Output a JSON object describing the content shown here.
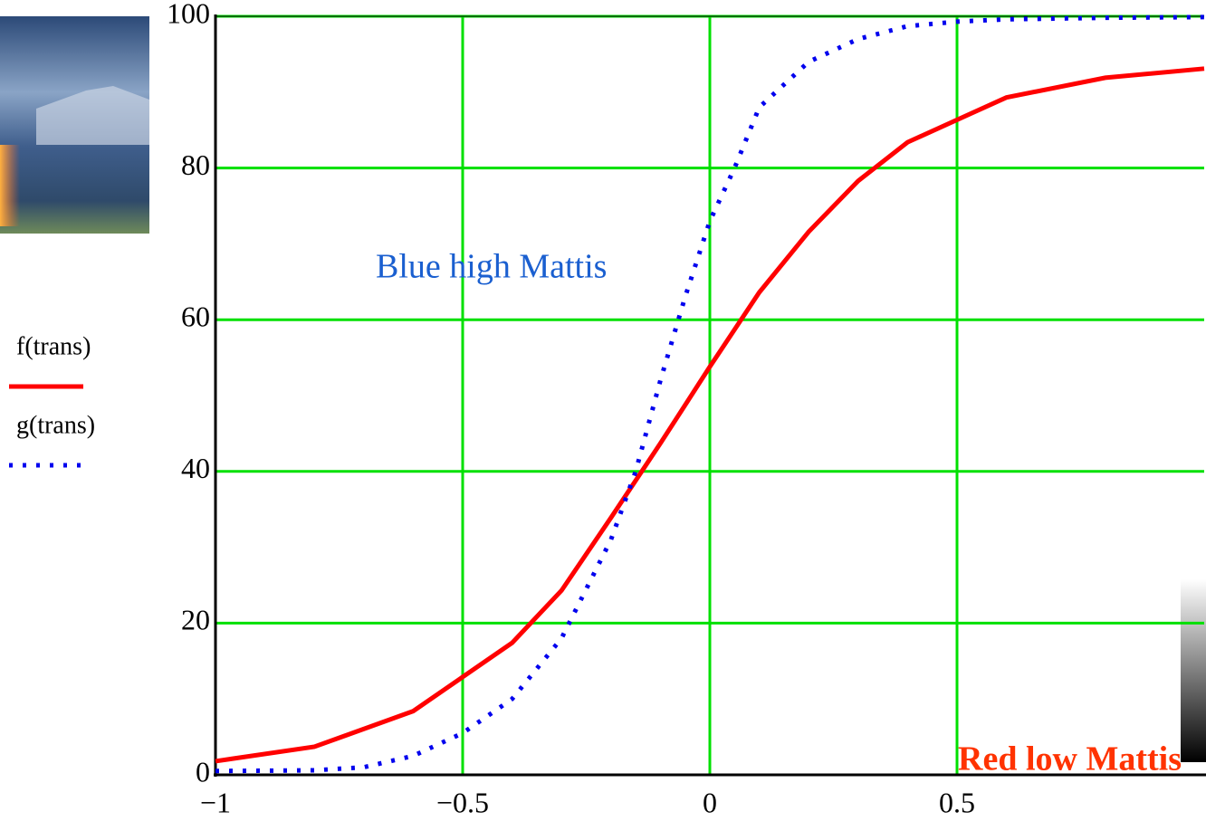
{
  "chart_data": {
    "type": "line",
    "xlim": [
      -1,
      1
    ],
    "ylim": [
      0,
      100
    ],
    "xticks": [
      {
        "value": -1,
        "label": "−1"
      },
      {
        "value": -0.5,
        "label": "−0.5"
      },
      0,
      0.5
    ],
    "yticks": [
      0,
      20,
      40,
      60,
      80,
      100
    ],
    "grid": true,
    "grid_color": "#00e000",
    "series": [
      {
        "name": "f(trans)",
        "color": "#ff0000",
        "style": "solid",
        "x": [
          -1,
          -0.8,
          -0.6,
          -0.4,
          -0.3,
          -0.2,
          -0.1,
          0,
          0.1,
          0.2,
          0.3,
          0.4,
          0.6,
          0.8,
          1
        ],
        "values": [
          1.8,
          3.7,
          8.4,
          17.4,
          24.3,
          33.9,
          43.7,
          53.8,
          63.6,
          71.6,
          78.3,
          83.4,
          89.3,
          91.9,
          93.1
        ]
      },
      {
        "name": "g(trans)",
        "color": "#0000ee",
        "style": "dotted",
        "x": [
          -1,
          -0.8,
          -0.7,
          -0.6,
          -0.5,
          -0.4,
          -0.3,
          -0.2,
          -0.15,
          -0.1,
          -0.05,
          0,
          0.05,
          0.1,
          0.2,
          0.3,
          0.4,
          0.5,
          0.6,
          0.8,
          1
        ],
        "values": [
          0.5,
          0.6,
          1,
          2.5,
          5.5,
          10,
          18,
          31,
          40,
          52,
          63,
          73,
          80,
          88,
          94,
          97,
          98.7,
          99.3,
          99.6,
          99.8,
          99.9
        ]
      }
    ],
    "annotations": [
      {
        "text": "Blue high Mattis",
        "color": "#1a5fd0",
        "bold": false
      },
      {
        "text": "Red low Mattis",
        "color": "#ff3300",
        "bold": true
      }
    ]
  }
}
